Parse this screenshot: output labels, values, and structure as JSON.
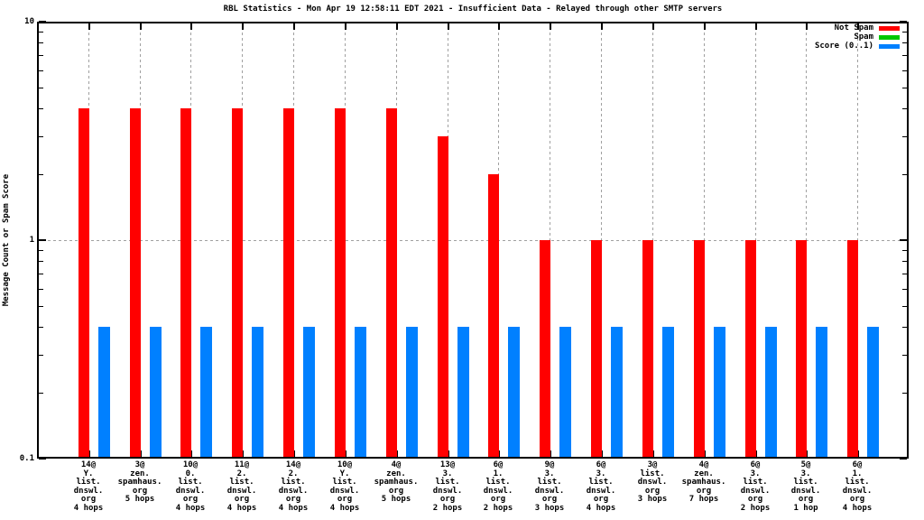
{
  "chart_data": {
    "type": "bar",
    "title": "RBL Statistics - Mon Apr 19 12:58:11 EDT 2021 - Insufficient Data - Relayed through other SMTP servers",
    "xlabel": "",
    "ylabel": "Message Count or Spam Score",
    "yscale": "log",
    "ylim": [
      0.1,
      10
    ],
    "ytick_labels": [
      "10",
      "1",
      "0.1"
    ],
    "ytick_values": [
      10,
      1,
      0.1
    ],
    "yminor_values": [
      9,
      8,
      7,
      6,
      5,
      4,
      3,
      2,
      0.9,
      0.8,
      0.7,
      0.6,
      0.5,
      0.4,
      0.3,
      0.2
    ],
    "grid": true,
    "legend_position": "top-right-inside",
    "categories": [
      [
        "14@",
        "Y.",
        "list.",
        "dnswl.",
        "org",
        "4 hops"
      ],
      [
        "3@",
        "zen.",
        "spamhaus.",
        "org",
        "5 hops"
      ],
      [
        "10@",
        "0.",
        "list.",
        "dnswl.",
        "org",
        "4 hops"
      ],
      [
        "11@",
        "2.",
        "list.",
        "dnswl.",
        "org",
        "4 hops"
      ],
      [
        "14@",
        "2.",
        "list.",
        "dnswl.",
        "org",
        "4 hops"
      ],
      [
        "10@",
        "Y.",
        "list.",
        "dnswl.",
        "org",
        "4 hops"
      ],
      [
        "4@",
        "zen.",
        "spamhaus.",
        "org",
        "5 hops"
      ],
      [
        "13@",
        "3.",
        "list.",
        "dnswl.",
        "org",
        "2 hops"
      ],
      [
        "6@",
        "1.",
        "list.",
        "dnswl.",
        "org",
        "2 hops"
      ],
      [
        "9@",
        "3.",
        "list.",
        "dnswl.",
        "org",
        "3 hops"
      ],
      [
        "6@",
        "3.",
        "list.",
        "dnswl.",
        "org",
        "4 hops"
      ],
      [
        "3@",
        "list.",
        "dnswl.",
        "org",
        "3 hops"
      ],
      [
        "4@",
        "zen.",
        "spamhaus.",
        "org",
        "7 hops"
      ],
      [
        "6@",
        "3.",
        "list.",
        "dnswl.",
        "org",
        "2 hops"
      ],
      [
        "5@",
        "3.",
        "list.",
        "dnswl.",
        "org",
        "1 hop"
      ],
      [
        "6@",
        "1.",
        "list.",
        "dnswl.",
        "org",
        "4 hops"
      ]
    ],
    "series": [
      {
        "name": "Not Spam",
        "color": "#ff0000",
        "values": [
          4,
          4,
          4,
          4,
          4,
          4,
          4,
          3,
          2,
          1,
          1,
          1,
          1,
          1,
          1,
          1
        ]
      },
      {
        "name": "Spam",
        "color": "#00c800",
        "values": [
          0,
          0,
          0,
          0,
          0,
          0,
          0,
          0,
          0,
          0,
          0,
          0,
          0,
          0,
          0,
          0
        ]
      },
      {
        "name": "Score (0..1)",
        "color": "#0080ff",
        "values": [
          0.4,
          0.4,
          0.4,
          0.4,
          0.4,
          0.4,
          0.4,
          0.4,
          0.4,
          0.4,
          0.4,
          0.4,
          0.4,
          0.4,
          0.4,
          0.4
        ]
      }
    ]
  }
}
